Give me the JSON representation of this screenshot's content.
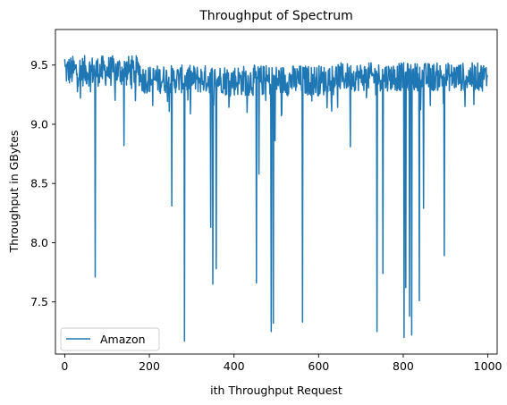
{
  "chart_data": {
    "type": "line",
    "title": "Throughput of Spectrum",
    "xlabel": "ith Throughput Request",
    "ylabel": "Throughput in GBytes",
    "xlim": [
      -22,
      1022
    ],
    "ylim": [
      7.06,
      9.8
    ],
    "xticks": [
      0,
      200,
      400,
      600,
      800,
      1000
    ],
    "yticks": [
      7.5,
      8.0,
      8.5,
      9.0,
      9.5
    ],
    "ytick_labels": [
      "7.5",
      "8.0",
      "8.5",
      "9.0",
      "9.5"
    ],
    "grid": false,
    "legend_position": "lower-left",
    "series": [
      {
        "name": "Amazon",
        "color": "#1f77b4",
        "baseline": {
          "segments": [
            {
              "from": 0,
              "to": 180,
              "center": 9.45,
              "amplitude": 0.13
            },
            {
              "from": 180,
              "to": 380,
              "center": 9.38,
              "amplitude": 0.12
            },
            {
              "from": 380,
              "to": 620,
              "center": 9.37,
              "amplitude": 0.13
            },
            {
              "from": 620,
              "to": 1000,
              "center": 9.4,
              "amplitude": 0.12
            }
          ]
        },
        "dips": [
          {
            "x": 72,
            "y": 7.71
          },
          {
            "x": 140,
            "y": 8.82
          },
          {
            "x": 253,
            "y": 8.31
          },
          {
            "x": 283,
            "y": 7.17
          },
          {
            "x": 345,
            "y": 8.13
          },
          {
            "x": 350,
            "y": 7.65
          },
          {
            "x": 358,
            "y": 7.78
          },
          {
            "x": 453,
            "y": 7.66
          },
          {
            "x": 459,
            "y": 8.58
          },
          {
            "x": 488,
            "y": 7.25
          },
          {
            "x": 493,
            "y": 7.32
          },
          {
            "x": 497,
            "y": 8.86
          },
          {
            "x": 562,
            "y": 7.33
          },
          {
            "x": 675,
            "y": 8.81
          },
          {
            "x": 738,
            "y": 7.25
          },
          {
            "x": 752,
            "y": 7.74
          },
          {
            "x": 802,
            "y": 7.2
          },
          {
            "x": 806,
            "y": 7.62
          },
          {
            "x": 815,
            "y": 7.38
          },
          {
            "x": 820,
            "y": 7.22
          },
          {
            "x": 838,
            "y": 7.51
          },
          {
            "x": 848,
            "y": 8.29
          },
          {
            "x": 897,
            "y": 7.89
          }
        ],
        "start": {
          "x": 0,
          "y": 9.55
        },
        "end": {
          "x": 1000,
          "y": 9.4
        },
        "n_points": 1000
      }
    ]
  }
}
